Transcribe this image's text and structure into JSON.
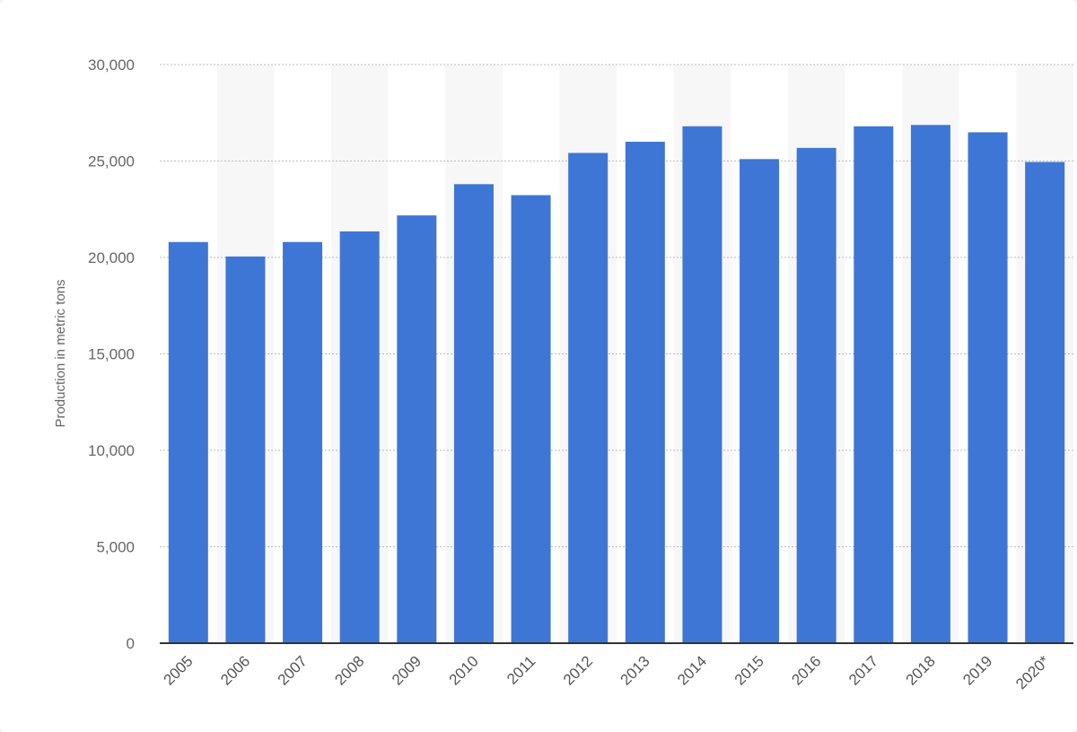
{
  "chart_data": {
    "type": "bar",
    "title": "",
    "xlabel": "",
    "ylabel": "Production in metric tons",
    "categories": [
      "2005",
      "2006",
      "2007",
      "2008",
      "2009",
      "2010",
      "2011",
      "2012",
      "2013",
      "2014",
      "2015",
      "2016",
      "2017",
      "2018",
      "2019",
      "2020*"
    ],
    "values": [
      20800,
      20050,
      20800,
      21350,
      22180,
      23800,
      23230,
      25420,
      26000,
      26800,
      25100,
      25680,
      26800,
      26870,
      26490,
      24950
    ],
    "ylim": [
      0,
      30000
    ],
    "yticks": [
      0,
      5000,
      10000,
      15000,
      20000,
      25000,
      30000
    ],
    "ytick_labels": [
      "0",
      "5,000",
      "10,000",
      "15,000",
      "20,000",
      "25,000",
      "30,000"
    ],
    "grid": true,
    "legend": "none",
    "bar_color": "#3e76d5",
    "band_color": "#f7f7f7",
    "grid_color": "#bbbbbb"
  }
}
